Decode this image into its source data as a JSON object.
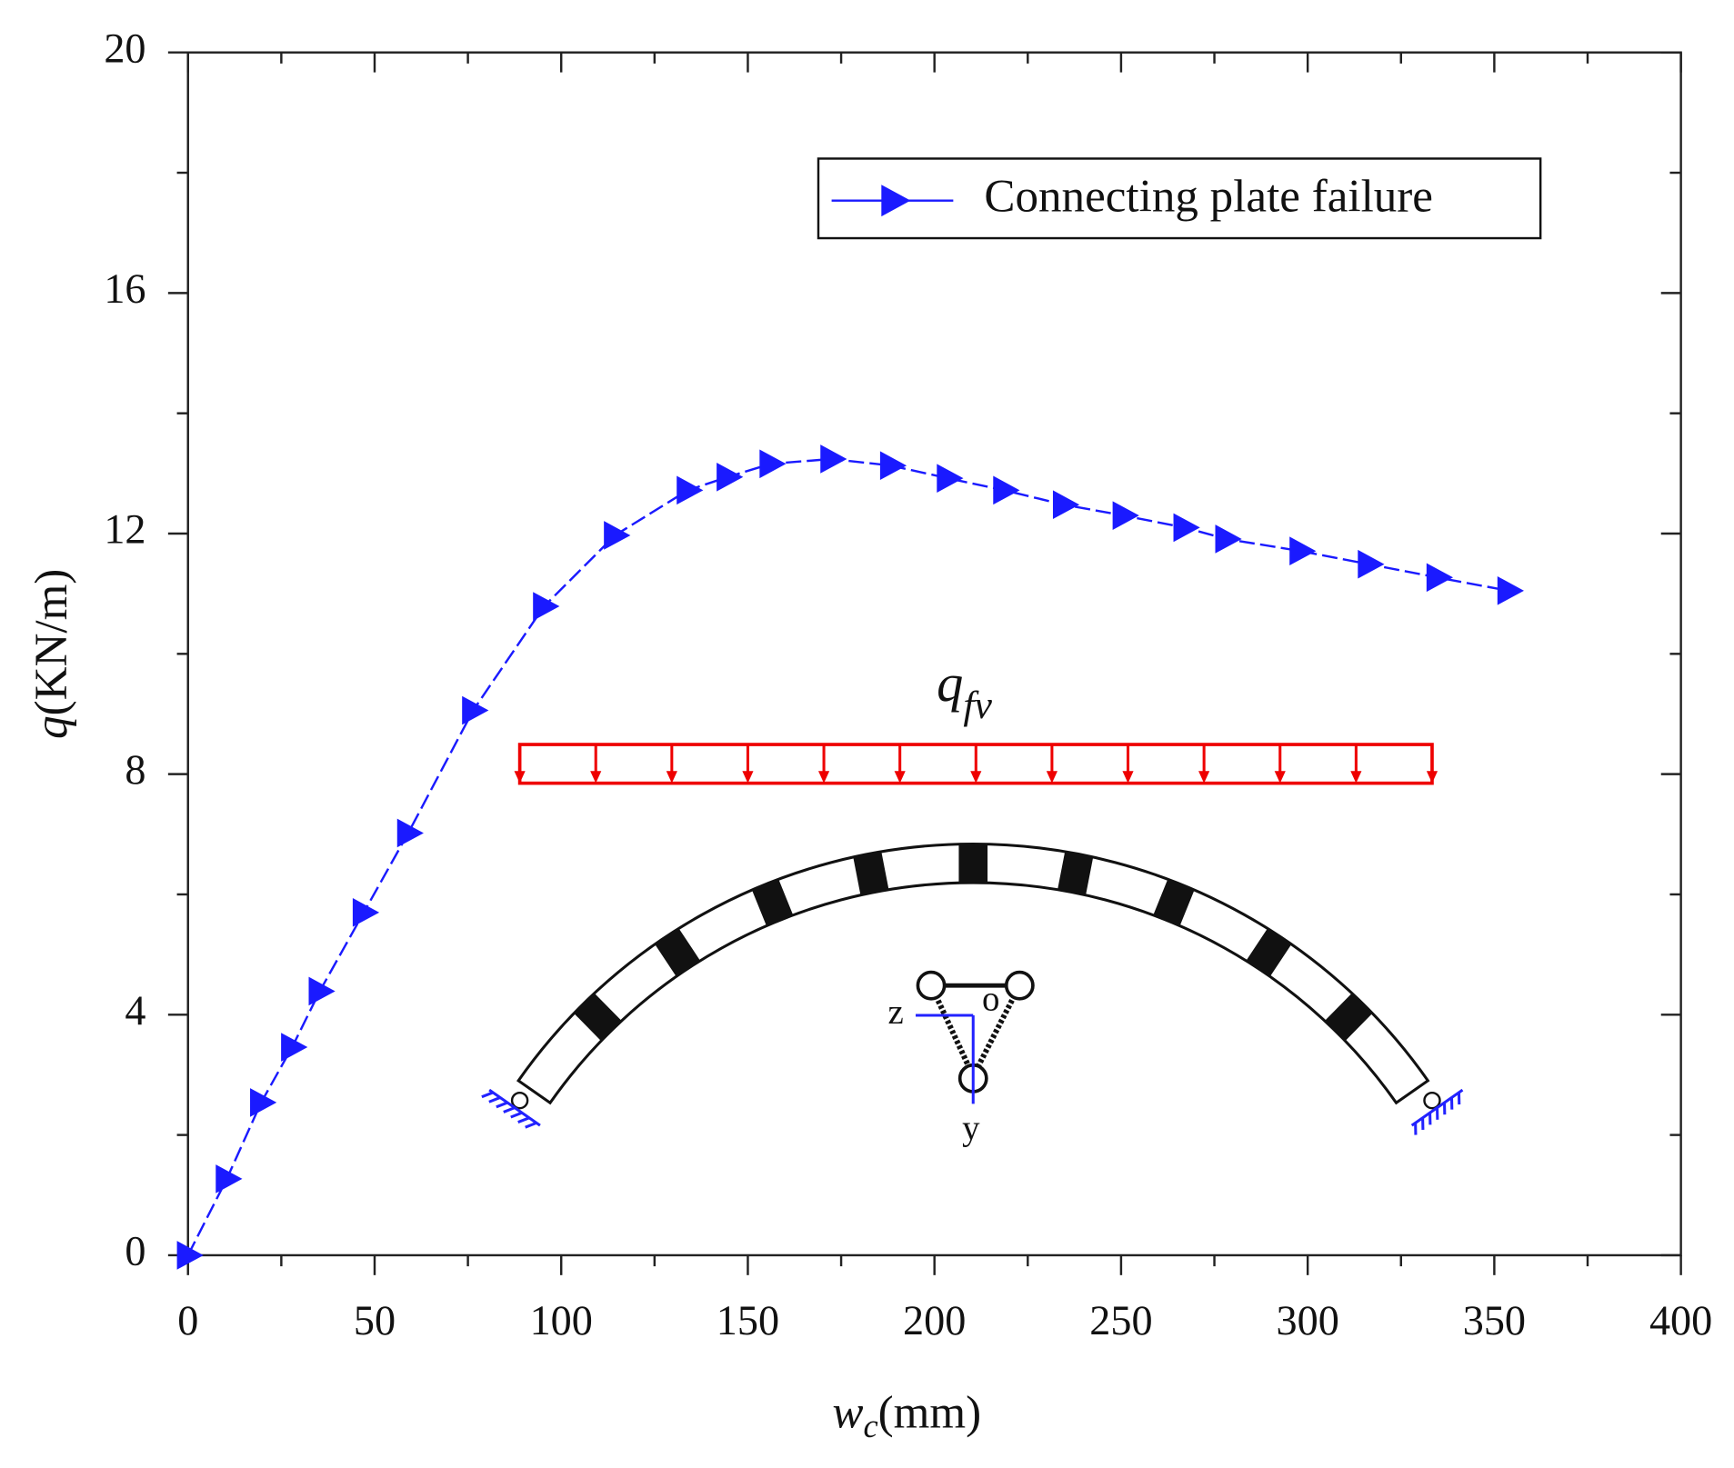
{
  "chart_data": {
    "type": "line",
    "x": [
      0,
      10.4,
      19.6,
      27.9,
      35.3,
      47.1,
      59.0,
      76.4,
      95.4,
      114.4,
      133.9,
      144.6,
      156.1,
      172.4,
      188.4,
      203.6,
      218.7,
      234.7,
      250.7,
      267.0,
      278.2,
      298.1,
      316.4,
      334.8,
      353.8
    ],
    "series": [
      {
        "name": "Connecting plate failure",
        "color": "#1a1aff",
        "values": [
          0,
          1.27,
          2.54,
          3.46,
          4.39,
          5.7,
          7.02,
          9.06,
          10.79,
          11.97,
          12.72,
          12.94,
          13.16,
          13.24,
          13.13,
          12.92,
          12.72,
          12.48,
          12.3,
          12.1,
          11.91,
          11.71,
          11.49,
          11.27,
          11.05
        ]
      }
    ],
    "xlim": [
      0,
      400
    ],
    "xticks": [
      0,
      50,
      100,
      150,
      200,
      250,
      300,
      350,
      400
    ],
    "ylim": [
      0,
      20
    ],
    "yticks": [
      0,
      4,
      8,
      12,
      16,
      20
    ],
    "xlabel": {
      "symbol": "w",
      "subscript": "c",
      "unit": "(mm)"
    },
    "ylabel": {
      "symbol": "q",
      "unit": "(KN/m)"
    },
    "legend": "upper right",
    "inset_labels": {
      "load": {
        "symbol": "q",
        "subscript": "fv"
      },
      "axes": [
        "z",
        "o",
        "y"
      ]
    }
  }
}
